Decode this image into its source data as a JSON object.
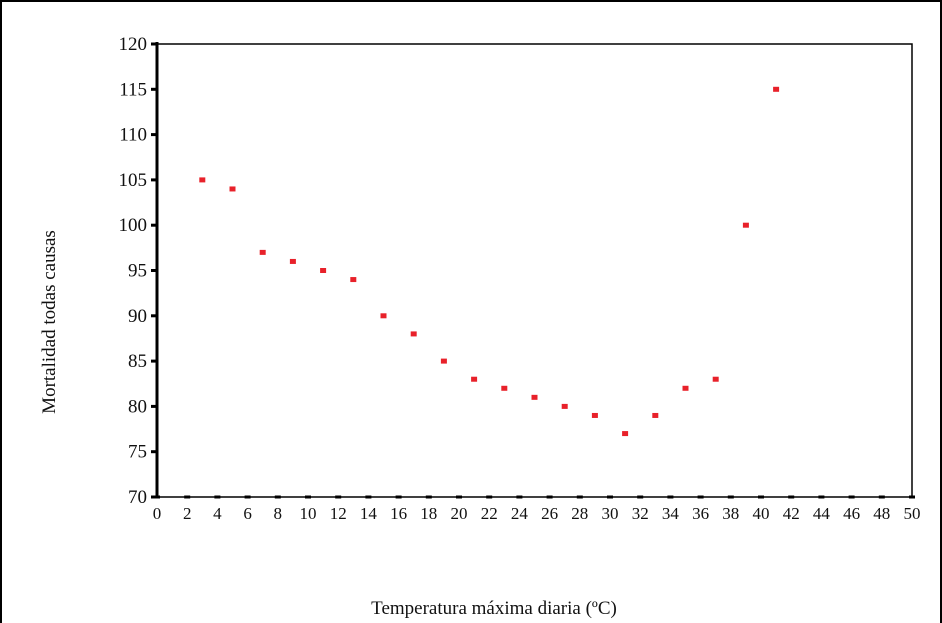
{
  "chart_data": {
    "type": "scatter",
    "title": "",
    "xlabel": "Temperatura máxima diaria (ºC)",
    "ylabel": "Mortalidad todas causas",
    "xlim": [
      0,
      50
    ],
    "ylim": [
      70,
      120
    ],
    "xticks": [
      "0",
      "2",
      "4",
      "6",
      "8",
      "10",
      "12",
      "14",
      "16",
      "18",
      "20",
      "22",
      "24",
      "26",
      "28",
      "30",
      "32",
      "34",
      "36",
      "38",
      "40",
      "42",
      "44",
      "46",
      "48",
      "50"
    ],
    "yticks": [
      "70",
      "75",
      "80",
      "85",
      "90",
      "95",
      "100",
      "105",
      "110",
      "115",
      "120"
    ],
    "grid": false,
    "marker_color": "#e8212a",
    "series": [
      {
        "x": [
          3,
          5,
          7,
          9,
          11,
          13,
          15,
          17,
          19,
          21,
          23,
          25,
          27,
          29,
          31,
          33,
          35,
          37,
          39,
          41
        ],
        "y": [
          105,
          104,
          97,
          96,
          95,
          94,
          90,
          88,
          85,
          83,
          82,
          81,
          80,
          79,
          77,
          79,
          82,
          83,
          100,
          115
        ]
      }
    ]
  }
}
